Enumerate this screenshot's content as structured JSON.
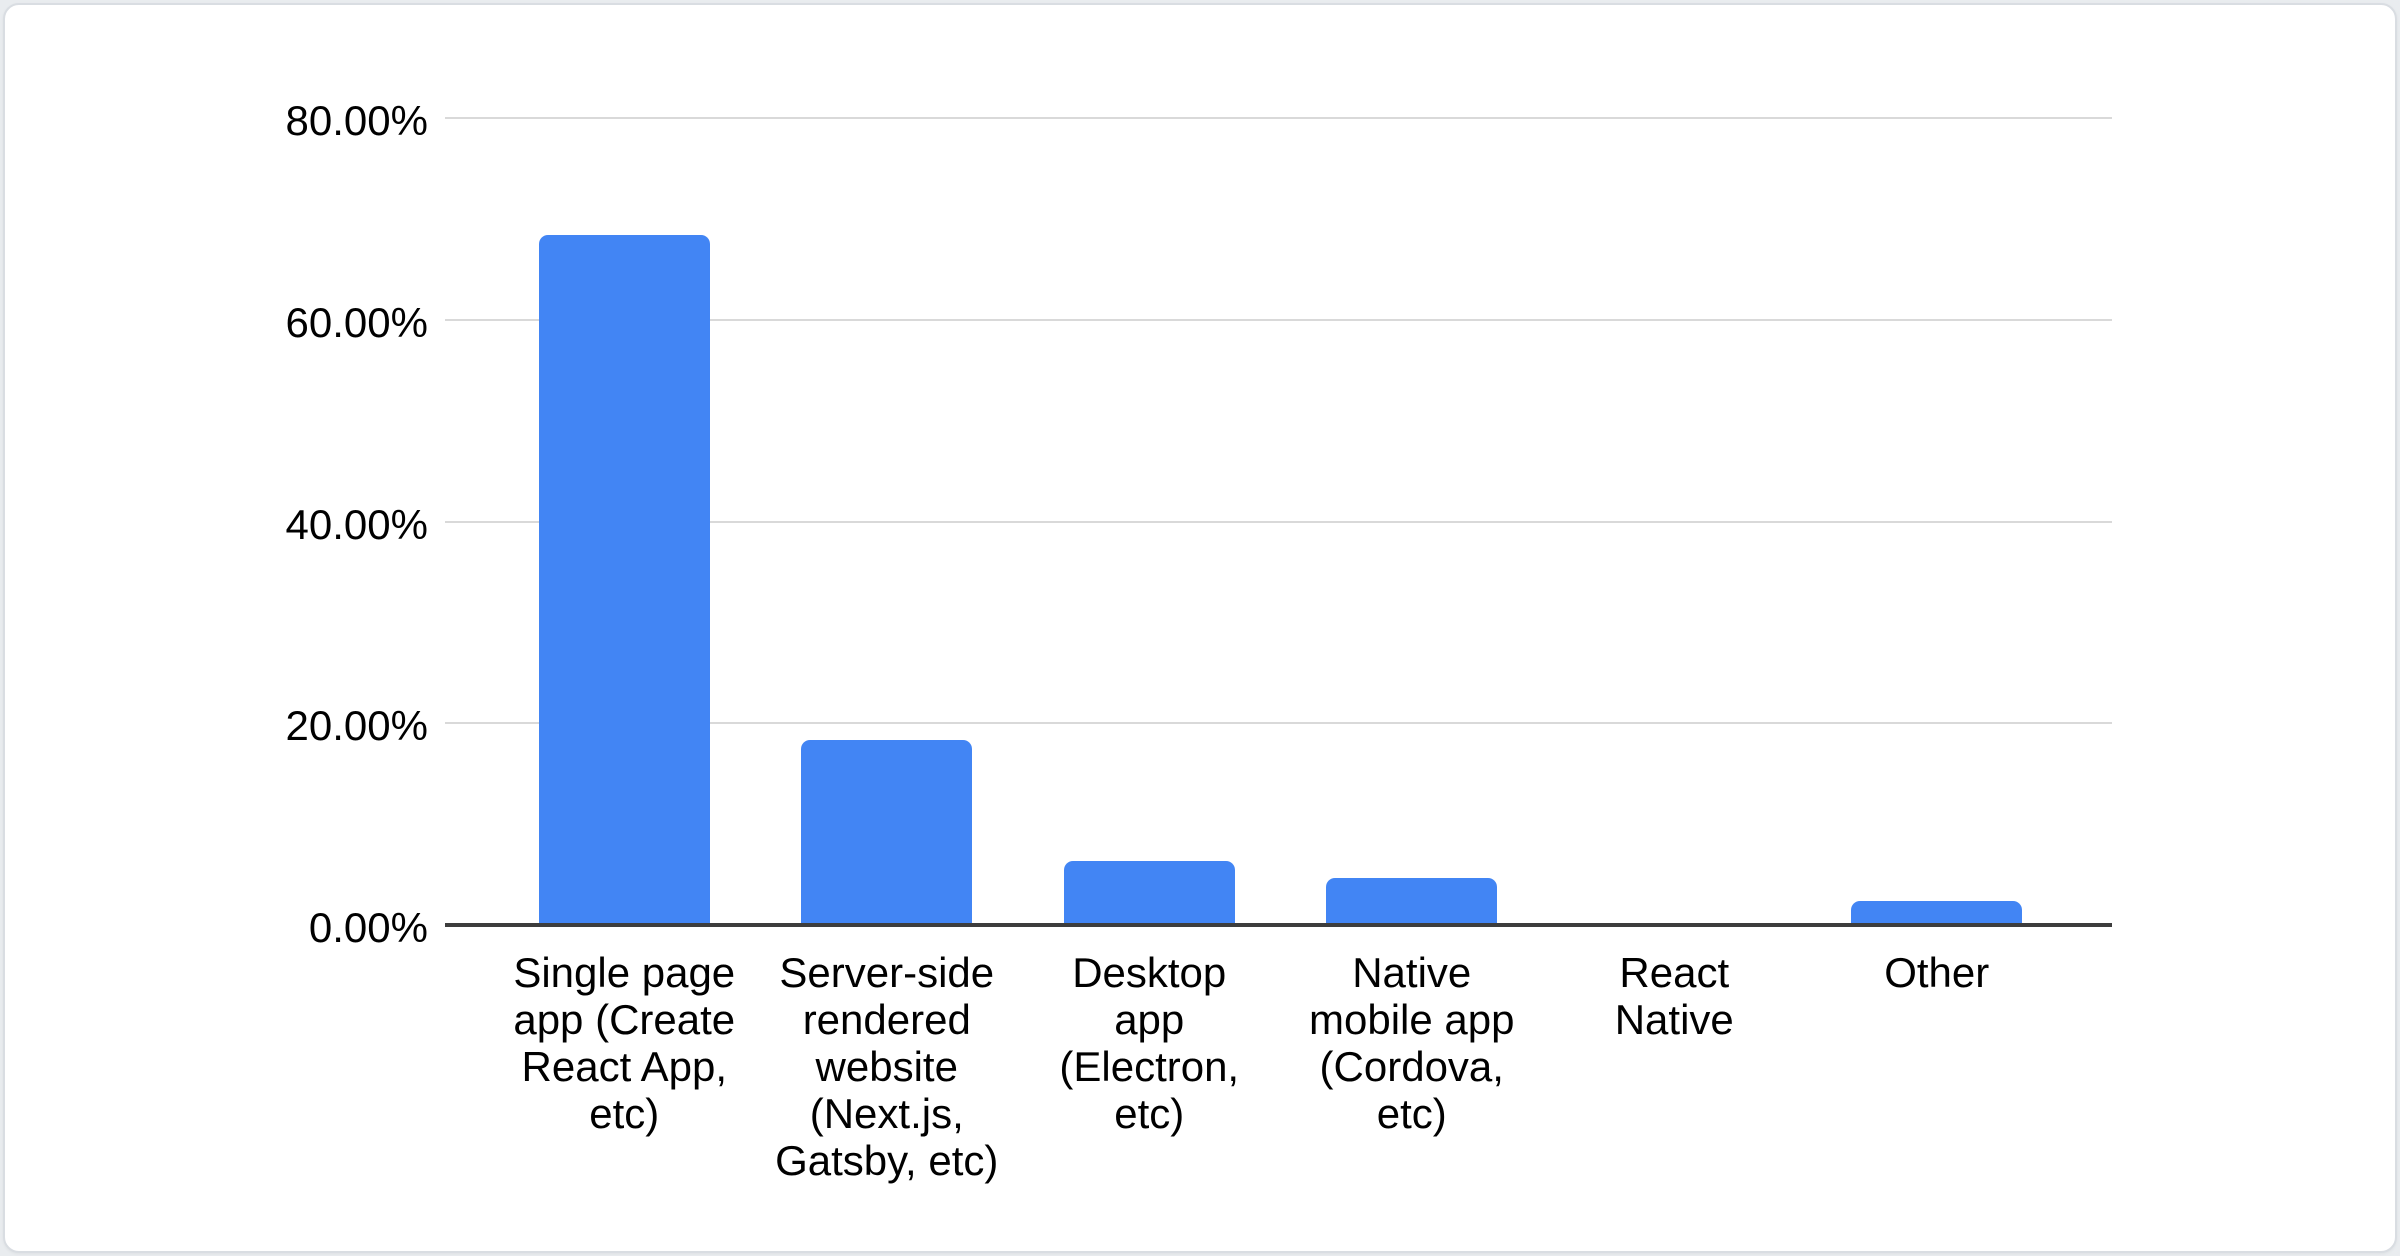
{
  "chart_data": {
    "type": "bar",
    "categories": [
      "Single page app (Create React App, etc)",
      "Server-side rendered website (Next.js, Gatsby, etc)",
      "Desktop app (Electron, etc)",
      "Native mobile app (Cordova, etc)",
      "React Native",
      "Other"
    ],
    "categories_wrapped": [
      "Single page\napp (Create\nReact App,\netc)",
      "Server-side\nrendered\nwebsite\n(Next.js,\nGatsby, etc)",
      "Desktop\napp\n(Electron,\netc)",
      "Native\nmobile app\n(Cordova,\netc)",
      "React\nNative",
      "Other"
    ],
    "values": [
      68.4,
      18.3,
      6.3,
      4.7,
      0,
      2.4
    ],
    "unit": "%",
    "ylim": [
      0,
      80
    ],
    "ytick_labels": [
      "80.00%",
      "60.00%",
      "40.00%",
      "20.00%",
      "0.00%"
    ],
    "grid": true,
    "legend": false,
    "colors": {
      "bar": "#4285f4",
      "gridline": "#d9d9d9",
      "axis_line": "#3d3d3d",
      "label_text": "#000000"
    }
  }
}
